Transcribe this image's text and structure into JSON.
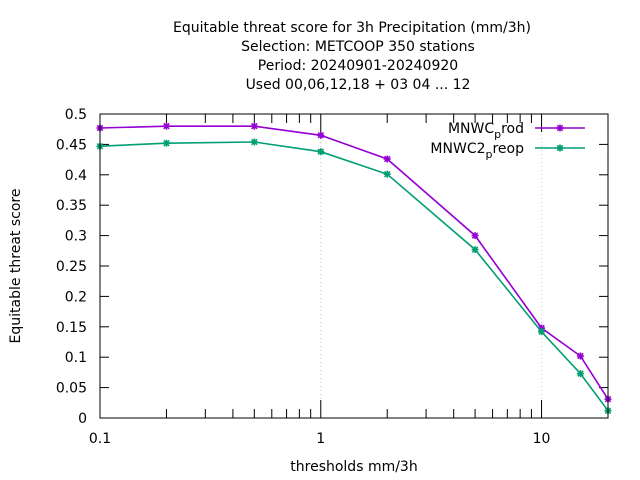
{
  "chart_data": {
    "type": "line",
    "title_lines": [
      "Equitable threat score  for 3h Precipitation (mm/3h)",
      "Selection: METCOOP    350 stations",
      "Period: 20240901-20240920",
      "Used  00,06,12,18 + 03 04 ... 12"
    ],
    "xlabel": "thresholds mm/3h",
    "ylabel": "Equitable threat score",
    "x_scale": "log",
    "xlim": [
      0.1,
      20
    ],
    "ylim": [
      0,
      0.5
    ],
    "x_ticks": [
      {
        "value": 0.1,
        "label": "0.1"
      },
      {
        "value": 1,
        "label": "1"
      },
      {
        "value": 10,
        "label": "10"
      }
    ],
    "y_ticks": [
      {
        "value": 0,
        "label": "0"
      },
      {
        "value": 0.05,
        "label": "0.05"
      },
      {
        "value": 0.1,
        "label": "0.1"
      },
      {
        "value": 0.15,
        "label": "0.15"
      },
      {
        "value": 0.2,
        "label": "0.2"
      },
      {
        "value": 0.25,
        "label": "0.25"
      },
      {
        "value": 0.3,
        "label": "0.3"
      },
      {
        "value": 0.35,
        "label": "0.35"
      },
      {
        "value": 0.4,
        "label": "0.4"
      },
      {
        "value": 0.45,
        "label": "0.45"
      },
      {
        "value": 0.5,
        "label": "0.5"
      }
    ],
    "grid_x": [
      1,
      10
    ],
    "legend_position": "top-right",
    "x": [
      0.1,
      0.2,
      0.5,
      1,
      2,
      5,
      10,
      15,
      20
    ],
    "series": [
      {
        "name_main": "MNWC",
        "name_sub": "p",
        "name_tail": "rod",
        "color": "#9400d3",
        "values": [
          0.477,
          0.48,
          0.48,
          0.465,
          0.426,
          0.3,
          0.148,
          0.102,
          0.031
        ]
      },
      {
        "name_main": "MNWC2",
        "name_sub": "p",
        "name_tail": "reop",
        "color": "#009e73",
        "values": [
          0.447,
          0.452,
          0.454,
          0.438,
          0.401,
          0.277,
          0.142,
          0.073,
          0.012
        ]
      }
    ]
  }
}
